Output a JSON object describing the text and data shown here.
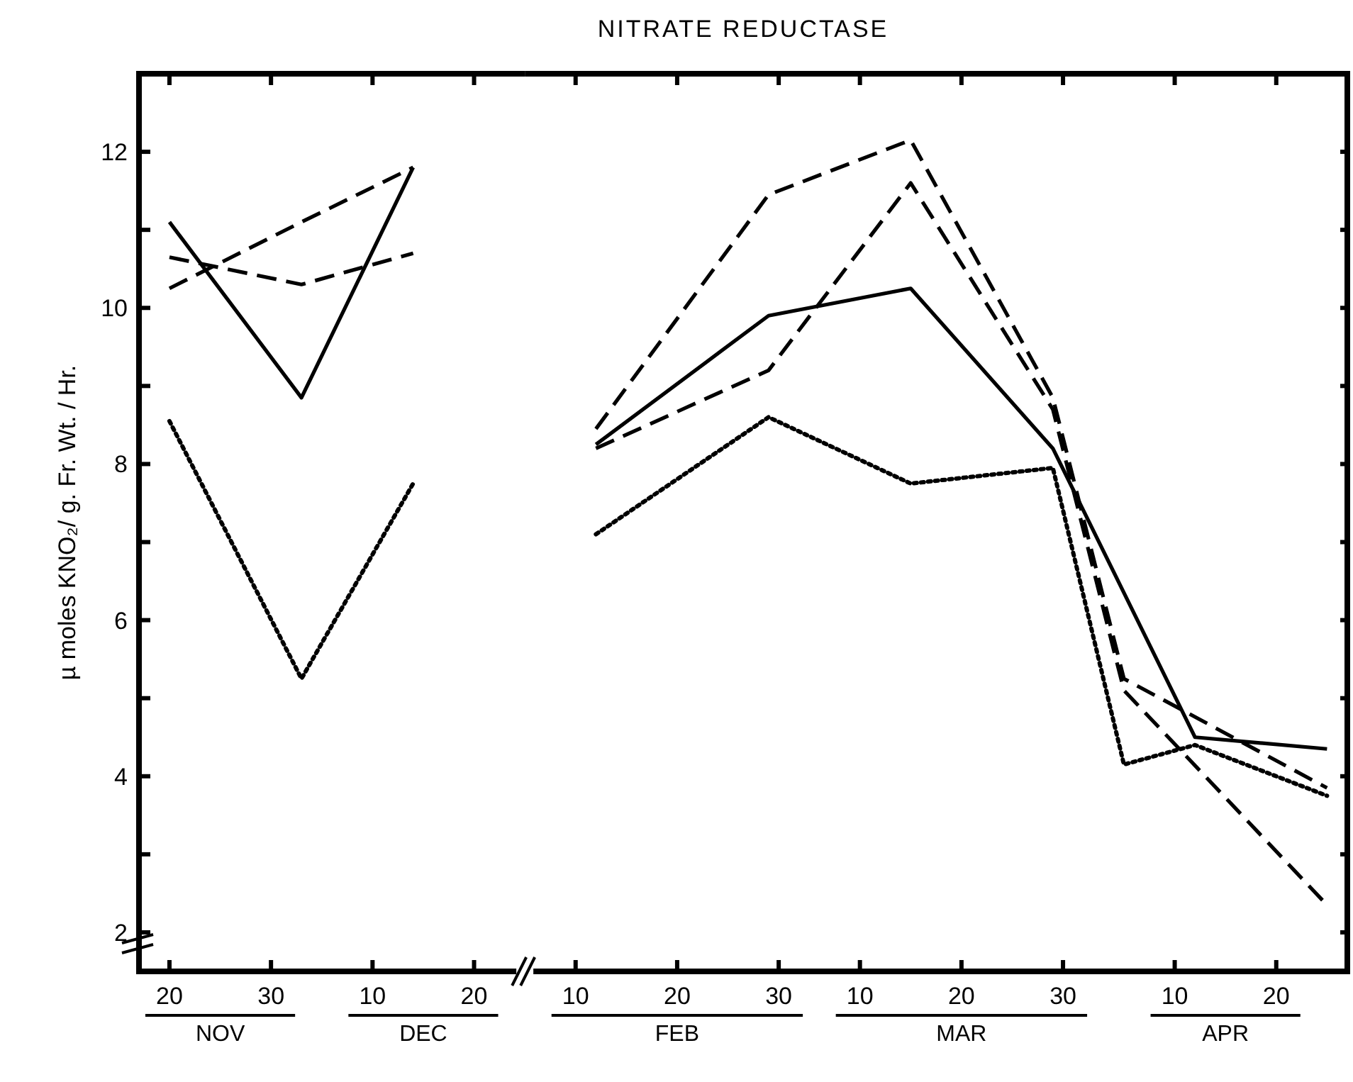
{
  "chart_data": [
    {
      "type": "line",
      "ylabel": "µ moles KNO₂/ g. Fr. Wt. / Hr.",
      "xlim": [
        "--11-17",
        "--12-25"
      ],
      "ylim": [
        1.5,
        13
      ],
      "xticks": [
        {
          "value": "--11-20",
          "label": "20"
        },
        {
          "value": "--11-30",
          "label": "30"
        },
        {
          "value": "--12-10",
          "label": "10"
        },
        {
          "value": "--12-20",
          "label": "20"
        }
      ],
      "yticks": [
        2,
        {
          "value": 3,
          "label": null
        },
        4,
        {
          "value": 5,
          "label": null
        },
        6,
        {
          "value": 7,
          "label": null
        },
        8,
        {
          "value": 9,
          "label": null
        },
        10,
        {
          "value": 11,
          "label": null
        },
        12
      ],
      "annotations": [
        "NOV",
        "DEC"
      ],
      "grid": false,
      "marker": "none",
      "series": [
        {
          "color": "#000000",
          "line_style": "dashed",
          "x": [
            "--11-20",
            "--12-03",
            "--12-14"
          ],
          "values": [
            10.25,
            11.1,
            11.8
          ]
        },
        {
          "color": "#000000",
          "line_style": "dashed",
          "x": [
            "--11-20",
            "--12-03",
            "--12-14"
          ],
          "values": [
            10.65,
            10.3,
            10.7
          ]
        },
        {
          "color": "#000000",
          "line_style": "solid",
          "x": [
            "--11-20",
            "--12-03",
            "--12-14"
          ],
          "values": [
            11.1,
            8.85,
            11.8
          ]
        },
        {
          "color": "#000000",
          "line_style": "dotted",
          "x": [
            "--11-20",
            "--12-03",
            "--12-14"
          ],
          "values": [
            8.55,
            5.25,
            7.75
          ]
        }
      ]
    },
    {
      "type": "line",
      "title": "NITRATE REDUCTASE",
      "tick_labels": "x",
      "xlim": [
        "--02-05",
        "--04-27"
      ],
      "ylim": [
        1.5,
        13
      ],
      "xticks": [
        {
          "value": "--02-10",
          "label": "10"
        },
        {
          "value": "--02-20",
          "label": "20"
        },
        {
          "value": "--03-02",
          "label": "30"
        },
        {
          "value": "--03-10",
          "label": "10"
        },
        {
          "value": "--03-20",
          "label": "20"
        },
        {
          "value": "--03-30",
          "label": "30"
        },
        {
          "value": "--04-10",
          "label": "10"
        },
        {
          "value": "--04-20",
          "label": "20"
        }
      ],
      "yticks": [
        2,
        {
          "value": 3,
          "label": null
        },
        4,
        {
          "value": 5,
          "label": null
        },
        6,
        {
          "value": 7,
          "label": null
        },
        8,
        {
          "value": 9,
          "label": null
        },
        10,
        {
          "value": 11,
          "label": null
        },
        12
      ],
      "annotations": [
        "FEB",
        "MAR",
        "APR"
      ],
      "grid": false,
      "marker": "none",
      "series": [
        {
          "color": "#000000",
          "line_style": "dashed",
          "x": [
            "--02-12",
            "--03-01",
            "--03-15",
            "--03-29",
            "--04-05",
            "--04-25"
          ],
          "values": [
            8.45,
            11.45,
            12.15,
            8.85,
            5.25,
            3.85
          ]
        },
        {
          "color": "#000000",
          "line_style": "dashed",
          "x": [
            "--02-12",
            "--03-01",
            "--03-15",
            "--03-29",
            "--04-05",
            "--04-25"
          ],
          "values": [
            8.2,
            9.2,
            11.6,
            8.7,
            5.1,
            2.35
          ]
        },
        {
          "color": "#000000",
          "line_style": "solid",
          "x": [
            "--02-12",
            "--03-01",
            "--03-15",
            "--03-29",
            "--04-12",
            "--04-25"
          ],
          "values": [
            8.25,
            9.9,
            10.25,
            8.2,
            4.5,
            4.35
          ]
        },
        {
          "color": "#000000",
          "line_style": "dotted",
          "x": [
            "--02-12",
            "--03-01",
            "--03-15",
            "--03-29",
            "--04-05",
            "--04-12",
            "--04-25"
          ],
          "values": [
            7.1,
            8.6,
            7.75,
            7.95,
            4.15,
            4.4,
            3.75
          ]
        }
      ]
    }
  ]
}
